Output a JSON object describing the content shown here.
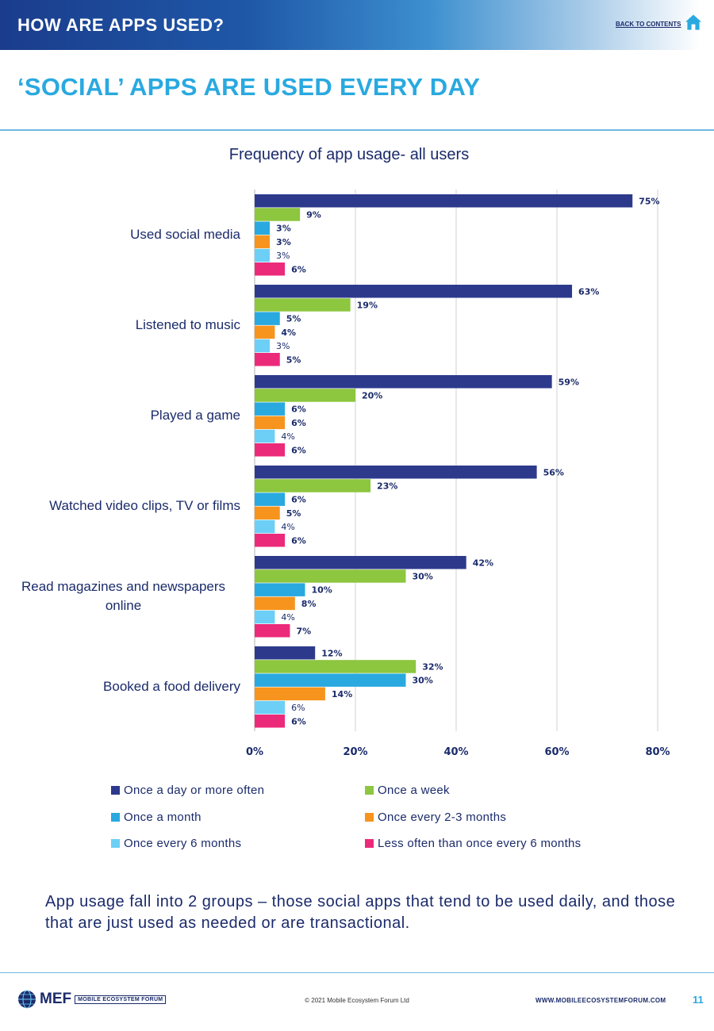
{
  "header": {
    "section_title": "HOW ARE APPS USED?",
    "back_link": "BACK TO CONTENTS",
    "home_icon": "home-icon"
  },
  "page_title": "‘SOCIAL’ APPS  ARE USED EVERY DAY",
  "chart_data": {
    "type": "bar",
    "orientation": "horizontal",
    "title": "Frequency of app usage- all users",
    "categories": [
      "Used social media",
      "Listened to music",
      "Played a game",
      "Watched video clips, TV or films",
      "Read magazines and newspapers online",
      "Booked a food delivery"
    ],
    "series": [
      {
        "name": "Once a day or more often",
        "color": "#2d3a8c",
        "values": [
          75,
          63,
          59,
          56,
          42,
          12
        ]
      },
      {
        "name": "Once a week",
        "color": "#8dc63f",
        "values": [
          9,
          19,
          20,
          23,
          30,
          32
        ]
      },
      {
        "name": "Once a month",
        "color": "#29a9e0",
        "values": [
          3,
          5,
          6,
          6,
          10,
          30
        ]
      },
      {
        "name": "Once every 2-3 months",
        "color": "#f7941d",
        "values": [
          3,
          4,
          6,
          5,
          8,
          14
        ]
      },
      {
        "name": "Once every 6 months",
        "color": "#6dcff6",
        "values": [
          3,
          3,
          4,
          4,
          4,
          6
        ]
      },
      {
        "name": "Less often than once every 6 months",
        "color": "#ec2a7a",
        "values": [
          6,
          5,
          6,
          6,
          7,
          6
        ]
      }
    ],
    "value_suffix": "%",
    "xlim": [
      0,
      80
    ],
    "xticks": [
      "0%",
      "20%",
      "40%",
      "60%",
      "80%"
    ],
    "grid": true,
    "legend_position": "bottom"
  },
  "summary": "App usage fall into 2 groups – those social apps that tend to be used daily, and those that are just used as needed or are transactional.",
  "footer": {
    "logo_text": "MEF",
    "logo_subtext": "MOBILE ECOSYSTEM FORUM",
    "copyright": "© 2021 Mobile Ecosystem Forum Ltd",
    "website": "WWW.MOBILEECOSYSTEMFORUM.COM",
    "page_number": "11"
  }
}
